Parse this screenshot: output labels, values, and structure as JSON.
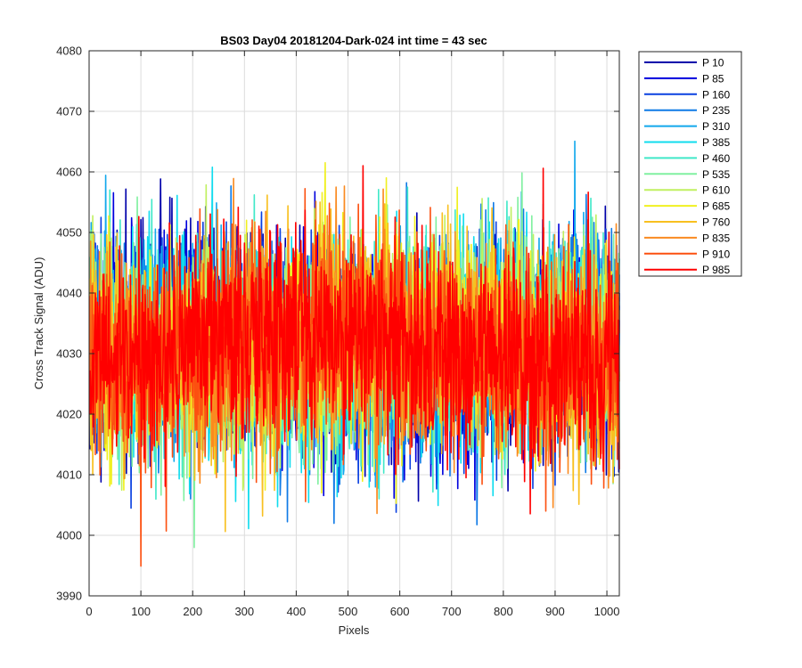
{
  "chart_data": {
    "type": "line",
    "title": "BS03 Day04 20181204-Dark-024 int time = 43 sec",
    "xlabel": "Pixels",
    "ylabel": "Cross Track Signal (ADU)",
    "xlim": [
      0,
      1024
    ],
    "ylim": [
      3990,
      4080
    ],
    "xticks": [
      "0",
      "100",
      "200",
      "300",
      "400",
      "500",
      "600",
      "700",
      "800",
      "900",
      "1000"
    ],
    "yticks": [
      "3990",
      "4000",
      "4010",
      "4020",
      "4030",
      "4040",
      "4050",
      "4060",
      "4070",
      "4080"
    ],
    "grid": true,
    "legend_position": "outside-top-right",
    "noise": {
      "mean": 4031,
      "std": 8.5,
      "min": 3992,
      "max": 4074,
      "points": 1024
    },
    "series": [
      {
        "name": "P 10",
        "color": "#0000aa"
      },
      {
        "name": "P 85",
        "color": "#0000dd"
      },
      {
        "name": "P 160",
        "color": "#0a40e0"
      },
      {
        "name": "P 235",
        "color": "#0f7ae6"
      },
      {
        "name": "P 310",
        "color": "#12a8ec"
      },
      {
        "name": "P 385",
        "color": "#10dcee"
      },
      {
        "name": "P 460",
        "color": "#40e8c8"
      },
      {
        "name": "P 535",
        "color": "#80f0a0"
      },
      {
        "name": "P 610",
        "color": "#c0f060"
      },
      {
        "name": "P 685",
        "color": "#f0f020"
      },
      {
        "name": "P 760",
        "color": "#f8c020"
      },
      {
        "name": "P 835",
        "color": "#fa8a20"
      },
      {
        "name": "P 910",
        "color": "#fc5010"
      },
      {
        "name": "P 985",
        "color": "#ff0000"
      }
    ]
  }
}
